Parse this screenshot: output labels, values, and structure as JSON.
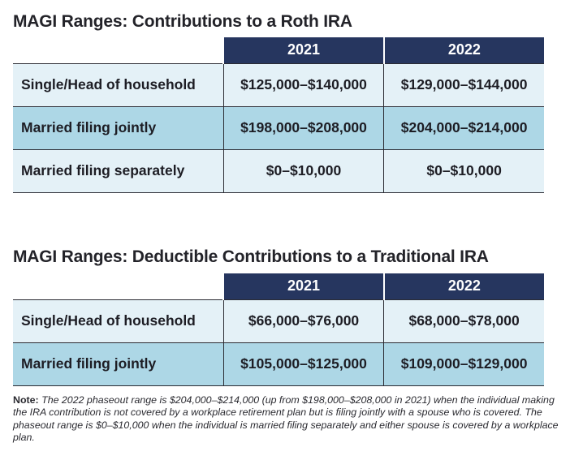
{
  "roth": {
    "title": "MAGI Ranges: Contributions to a Roth IRA",
    "headers": [
      "2021",
      "2022"
    ],
    "rows": [
      {
        "label": "Single/Head of household",
        "y2021": "$125,000–$140,000",
        "y2022": "$129,000–$144,000"
      },
      {
        "label": "Married filing jointly",
        "y2021": "$198,000–$208,000",
        "y2022": "$204,000–$214,000"
      },
      {
        "label": "Married filing separately",
        "y2021": "$0–$10,000",
        "y2022": "$0–$10,000"
      }
    ]
  },
  "traditional": {
    "title": "MAGI Ranges: Deductible Contributions to a Traditional IRA",
    "headers": [
      "2021",
      "2022"
    ],
    "rows": [
      {
        "label": "Single/Head of household",
        "y2021": "$66,000–$76,000",
        "y2022": "$68,000–$78,000"
      },
      {
        "label": "Married filing jointly",
        "y2021": "$105,000–$125,000",
        "y2022": "$109,000–$129,000"
      }
    ]
  },
  "note": {
    "label": "Note:",
    "text": "The 2022 phaseout range is $204,000–$214,000 (up from $198,000–$208,000 in 2021) when the individual making the IRA contribution is not covered by a workplace retirement plan but is filing jointly with a spouse who is covered. The phaseout range is $0–$10,000 when the individual is married filing separately and either spouse is covered by a workplace plan."
  },
  "colors": {
    "header_bg": "#26365f",
    "row_light": "#e4f1f7",
    "row_dark": "#add7e6"
  }
}
